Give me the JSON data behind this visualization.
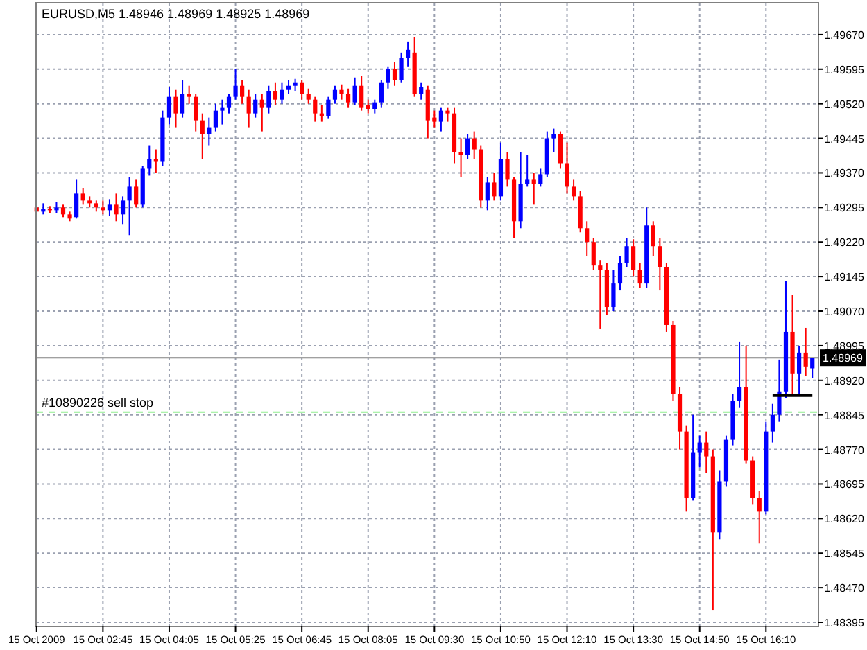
{
  "chart_data": {
    "type": "candlestick",
    "title": "EURUSD,M5  1.48946 1.48969 1.48925 1.48969",
    "categories": [
      "15 Oct 2009",
      null,
      null,
      null,
      null,
      null,
      null,
      null,
      null,
      null,
      "15 Oct 02:45",
      null,
      null,
      null,
      null,
      null,
      null,
      null,
      null,
      null,
      "15 Oct 04:05",
      null,
      null,
      null,
      null,
      null,
      null,
      null,
      null,
      null,
      "15 Oct 05:25",
      null,
      null,
      null,
      null,
      null,
      null,
      null,
      null,
      null,
      "15 Oct 06:45",
      null,
      null,
      null,
      null,
      null,
      null,
      null,
      null,
      null,
      "15 Oct 08:05",
      null,
      null,
      null,
      null,
      null,
      null,
      null,
      null,
      null,
      "15 Oct 09:30",
      null,
      null,
      null,
      null,
      null,
      null,
      null,
      null,
      null,
      "15 Oct 10:50",
      null,
      null,
      null,
      null,
      null,
      null,
      null,
      null,
      null,
      "15 Oct 12:10",
      null,
      null,
      null,
      null,
      null,
      null,
      null,
      null,
      null,
      "15 Oct 13:30",
      null,
      null,
      null,
      null,
      null,
      null,
      null,
      null,
      null,
      "15 Oct 14:50",
      null,
      null,
      null,
      null,
      null,
      null,
      null,
      null,
      null,
      "15 Oct 16:10",
      null,
      null,
      null,
      null,
      null,
      null,
      null
    ],
    "ohlc": [
      [
        1.49295,
        1.49301,
        1.49277,
        1.49286
      ],
      [
        1.49286,
        1.49304,
        1.4928,
        1.49292
      ],
      [
        1.49292,
        1.49298,
        1.49283,
        1.49289
      ],
      [
        1.49289,
        1.49307,
        1.49283,
        1.49295
      ],
      [
        1.49295,
        1.49301,
        1.49274,
        1.4928
      ],
      [
        1.4928,
        1.49286,
        1.49265,
        1.49271
      ],
      [
        1.49274,
        1.49355,
        1.49271,
        1.49325
      ],
      [
        1.49325,
        1.49337,
        1.49301,
        1.4931
      ],
      [
        1.4931,
        1.49319,
        1.49295,
        1.49304
      ],
      [
        1.49304,
        1.4931,
        1.49286,
        1.49295
      ],
      [
        1.49295,
        1.4931,
        1.4928,
        1.49289
      ],
      [
        1.49289,
        1.49313,
        1.49277,
        1.49301
      ],
      [
        1.49301,
        1.49325,
        1.49265,
        1.4928
      ],
      [
        1.4928,
        1.49319,
        1.49259,
        1.4931
      ],
      [
        1.4931,
        1.49361,
        1.49235,
        1.4934
      ],
      [
        1.4934,
        1.49355,
        1.49295,
        1.49301
      ],
      [
        1.49301,
        1.49385,
        1.49295,
        1.49379
      ],
      [
        1.49379,
        1.4943,
        1.49364,
        1.494
      ],
      [
        1.494,
        1.49421,
        1.4937,
        1.49394
      ],
      [
        1.49394,
        1.49505,
        1.49385,
        1.4949
      ],
      [
        1.4949,
        1.49556,
        1.49475,
        1.49535
      ],
      [
        1.49535,
        1.4955,
        1.49469,
        1.49499
      ],
      [
        1.49499,
        1.49571,
        1.4949,
        1.49541
      ],
      [
        1.49541,
        1.49559,
        1.4952,
        1.49535
      ],
      [
        1.49535,
        1.49541,
        1.4946,
        1.49484
      ],
      [
        1.49484,
        1.49499,
        1.494,
        1.49454
      ],
      [
        1.49454,
        1.4949,
        1.4943,
        1.49469
      ],
      [
        1.49469,
        1.4952,
        1.4946,
        1.49505
      ],
      [
        1.49505,
        1.49529,
        1.49475,
        1.49511
      ],
      [
        1.49511,
        1.49541,
        1.49499,
        1.49535
      ],
      [
        1.49535,
        1.49595,
        1.49529,
        1.49559
      ],
      [
        1.49559,
        1.49571,
        1.4952,
        1.49535
      ],
      [
        1.49535,
        1.4955,
        1.49469,
        1.49499
      ],
      [
        1.49499,
        1.49541,
        1.4949,
        1.49529
      ],
      [
        1.49529,
        1.49541,
        1.4946,
        1.49511
      ],
      [
        1.49511,
        1.49559,
        1.49499,
        1.49547
      ],
      [
        1.49547,
        1.49565,
        1.49517,
        1.49529
      ],
      [
        1.49529,
        1.49565,
        1.4952,
        1.4955
      ],
      [
        1.4955,
        1.49571,
        1.49541,
        1.49559
      ],
      [
        1.49559,
        1.49574,
        1.49547,
        1.49565
      ],
      [
        1.49565,
        1.49571,
        1.49529,
        1.49541
      ],
      [
        1.49541,
        1.49553,
        1.4952,
        1.49529
      ],
      [
        1.49529,
        1.49535,
        1.49481,
        1.49499
      ],
      [
        1.49499,
        1.49517,
        1.49481,
        1.49493
      ],
      [
        1.49493,
        1.49535,
        1.49487,
        1.49529
      ],
      [
        1.49529,
        1.49559,
        1.4952,
        1.4955
      ],
      [
        1.4955,
        1.49562,
        1.49529,
        1.49541
      ],
      [
        1.49541,
        1.49553,
        1.49511,
        1.49523
      ],
      [
        1.49523,
        1.49577,
        1.49517,
        1.49559
      ],
      [
        1.49559,
        1.4958,
        1.49505,
        1.49511
      ],
      [
        1.49517,
        1.49529,
        1.49499,
        1.49508
      ],
      [
        1.49508,
        1.49529,
        1.49499,
        1.49523
      ],
      [
        1.49523,
        1.49571,
        1.49511,
        1.49565
      ],
      [
        1.49565,
        1.49601,
        1.49553,
        1.49595
      ],
      [
        1.49595,
        1.4961,
        1.49559,
        1.49571
      ],
      [
        1.49571,
        1.49631,
        1.49565,
        1.49619
      ],
      [
        1.49619,
        1.49655,
        1.49601,
        1.49637
      ],
      [
        1.49631,
        1.49664,
        1.49535,
        1.49541
      ],
      [
        1.49541,
        1.49565,
        1.49529,
        1.49556
      ],
      [
        1.4955,
        1.49559,
        1.49445,
        1.49484
      ],
      [
        1.4949,
        1.49505,
        1.49469,
        1.49481
      ],
      [
        1.49481,
        1.49511,
        1.4946,
        1.49505
      ],
      [
        1.49505,
        1.49511,
        1.49481,
        1.49499
      ],
      [
        1.49499,
        1.49511,
        1.49391,
        1.49415
      ],
      [
        1.49415,
        1.49445,
        1.49361,
        1.49409
      ],
      [
        1.49409,
        1.49454,
        1.494,
        1.49445
      ],
      [
        1.49445,
        1.4946,
        1.494,
        1.49421
      ],
      [
        1.49421,
        1.4943,
        1.49295,
        1.4931
      ],
      [
        1.4931,
        1.49361,
        1.49289,
        1.49349
      ],
      [
        1.49349,
        1.4937,
        1.4931,
        1.49319
      ],
      [
        1.49319,
        1.49436,
        1.4931,
        1.494
      ],
      [
        1.494,
        1.49415,
        1.4934,
        1.49355
      ],
      [
        1.49355,
        1.49361,
        1.49229,
        1.49265
      ],
      [
        1.49265,
        1.49415,
        1.4925,
        1.49346
      ],
      [
        1.49346,
        1.49409,
        1.4934,
        1.49355
      ],
      [
        1.49355,
        1.4937,
        1.49301,
        1.49346
      ],
      [
        1.49346,
        1.49379,
        1.4934,
        1.49367
      ],
      [
        1.49367,
        1.4946,
        1.49361,
        1.49445
      ],
      [
        1.49445,
        1.49466,
        1.49415,
        1.49454
      ],
      [
        1.49454,
        1.4946,
        1.49379,
        1.49391
      ],
      [
        1.49391,
        1.49436,
        1.49325,
        1.4934
      ],
      [
        1.4934,
        1.49355,
        1.4931,
        1.49319
      ],
      [
        1.49319,
        1.49331,
        1.49241,
        1.4925
      ],
      [
        1.4925,
        1.49265,
        1.4919,
        1.4922
      ],
      [
        1.4922,
        1.49229,
        1.4916,
        1.49169
      ],
      [
        1.49169,
        1.49181,
        1.49031,
        1.4916
      ],
      [
        1.4916,
        1.49175,
        1.49061,
        1.49079
      ],
      [
        1.49079,
        1.4916,
        1.4907,
        1.4913
      ],
      [
        1.4913,
        1.4919,
        1.49115,
        1.49175
      ],
      [
        1.49175,
        1.49229,
        1.49166,
        1.49211
      ],
      [
        1.49211,
        1.49226,
        1.49145,
        1.4916
      ],
      [
        1.4916,
        1.49175,
        1.49121,
        1.4913
      ],
      [
        1.4913,
        1.49295,
        1.49121,
        1.49256
      ],
      [
        1.49256,
        1.49265,
        1.4919,
        1.49211
      ],
      [
        1.49211,
        1.49229,
        1.49115,
        1.49166
      ],
      [
        1.49166,
        1.49175,
        1.49025,
        1.4904
      ],
      [
        1.4904,
        1.49049,
        1.48875,
        1.4889
      ],
      [
        1.4889,
        1.48905,
        1.4877,
        1.48809
      ],
      [
        1.48809,
        1.48821,
        1.48635,
        1.48665
      ],
      [
        1.48665,
        1.48845,
        1.48659,
        1.48764
      ],
      [
        1.48764,
        1.488,
        1.48731,
        1.48785
      ],
      [
        1.48785,
        1.48809,
        1.48719,
        1.48755
      ],
      [
        1.48755,
        1.4877,
        1.48422,
        1.4859
      ],
      [
        1.4859,
        1.48725,
        1.48575,
        1.48701
      ],
      [
        1.48701,
        1.488,
        1.48689,
        1.48791
      ],
      [
        1.48791,
        1.4889,
        1.48779,
        1.48875
      ],
      [
        1.48875,
        1.49004,
        1.4886,
        1.48905
      ],
      [
        1.48905,
        1.48995,
        1.4874,
        1.48746
      ],
      [
        1.48746,
        1.48755,
        1.4865,
        1.48665
      ],
      [
        1.48665,
        1.4868,
        1.48566,
        1.48635
      ],
      [
        1.48635,
        1.4883,
        1.48629,
        1.48809
      ],
      [
        1.48809,
        1.48869,
        1.48785,
        1.48845
      ],
      [
        1.48845,
        1.48965,
        1.4883,
        1.48896
      ],
      [
        1.48896,
        1.49136,
        1.48881,
        1.49025
      ],
      [
        1.49025,
        1.49106,
        1.4889,
        1.48935
      ],
      [
        1.48935,
        1.48995,
        1.48887,
        1.4898
      ],
      [
        1.4898,
        1.49034,
        1.48929,
        1.4895
      ],
      [
        1.48946,
        1.48969,
        1.48925,
        1.48969
      ]
    ],
    "colors": [
      "#ff0000",
      "#0000ff",
      "#ff0000",
      "#0000ff",
      "#ff0000",
      "#ff0000",
      "#0000ff",
      "#ff0000",
      "#ff0000",
      "#ff0000",
      "#ff0000",
      "#0000ff",
      "#ff0000",
      "#0000ff",
      "#0000ff",
      "#ff0000",
      "#0000ff",
      "#0000ff",
      "#ff0000",
      "#0000ff",
      "#0000ff",
      "#ff0000",
      "#0000ff",
      "#ff0000",
      "#ff0000",
      "#ff0000",
      "#0000ff",
      "#0000ff",
      "#0000ff",
      "#0000ff",
      "#0000ff",
      "#ff0000",
      "#ff0000",
      "#0000ff",
      "#ff0000",
      "#0000ff",
      "#ff0000",
      "#0000ff",
      "#0000ff",
      "#0000ff",
      "#ff0000",
      "#ff0000",
      "#ff0000",
      "#ff0000",
      "#0000ff",
      "#0000ff",
      "#ff0000",
      "#ff0000",
      "#0000ff",
      "#ff0000",
      "#ff0000",
      "#0000ff",
      "#0000ff",
      "#0000ff",
      "#ff0000",
      "#0000ff",
      "#0000ff",
      "#ff0000",
      "#0000ff",
      "#ff0000",
      "#ff0000",
      "#0000ff",
      "#ff0000",
      "#ff0000",
      "#ff0000",
      "#0000ff",
      "#ff0000",
      "#ff0000",
      "#0000ff",
      "#ff0000",
      "#0000ff",
      "#ff0000",
      "#ff0000",
      "#0000ff",
      "#0000ff",
      "#ff0000",
      "#0000ff",
      "#0000ff",
      "#0000ff",
      "#ff0000",
      "#ff0000",
      "#ff0000",
      "#ff0000",
      "#ff0000",
      "#ff0000",
      "#ff0000",
      "#ff0000",
      "#0000ff",
      "#0000ff",
      "#0000ff",
      "#ff0000",
      "#ff0000",
      "#0000ff",
      "#ff0000",
      "#ff0000",
      "#ff0000",
      "#ff0000",
      "#ff0000",
      "#ff0000",
      "#0000ff",
      "#0000ff",
      "#ff0000",
      "#ff0000",
      "#0000ff",
      "#0000ff",
      "#0000ff",
      "#0000ff",
      "#ff0000",
      "#ff0000",
      "#ff0000",
      "#0000ff",
      "#0000ff",
      "#0000ff",
      "#0000ff",
      "#ff0000",
      "#0000ff",
      "#ff0000",
      "#0000ff"
    ],
    "series": [
      {
        "type": "line",
        "color": "#000000",
        "values": [
          null,
          null,
          null,
          null,
          null,
          null,
          null,
          null,
          null,
          null,
          null,
          null,
          null,
          null,
          null,
          null,
          null,
          null,
          null,
          null,
          null,
          null,
          null,
          null,
          null,
          null,
          null,
          null,
          null,
          null,
          null,
          null,
          null,
          null,
          null,
          null,
          null,
          null,
          null,
          null,
          null,
          null,
          null,
          null,
          null,
          null,
          null,
          null,
          null,
          null,
          null,
          null,
          null,
          null,
          null,
          null,
          null,
          null,
          null,
          null,
          null,
          null,
          null,
          null,
          null,
          null,
          null,
          null,
          null,
          null,
          null,
          null,
          null,
          null,
          null,
          null,
          null,
          null,
          null,
          null,
          null,
          null,
          null,
          null,
          null,
          null,
          null,
          null,
          null,
          null,
          null,
          null,
          null,
          null,
          null,
          null,
          null,
          null,
          null,
          null,
          null,
          null,
          null,
          null,
          null,
          null,
          null,
          null,
          null,
          null,
          null,
          1.48887,
          1.48887,
          1.48887,
          1.48887,
          1.48887,
          1.48887,
          1.48887
        ]
      }
    ],
    "ylim": [
      1.48386,
      1.49739
    ],
    "yticks": [
      {
        "value": 1.4967,
        "label": "1.49670"
      },
      {
        "value": 1.49595,
        "label": "1.49595"
      },
      {
        "value": 1.4952,
        "label": "1.49520"
      },
      {
        "value": 1.49445,
        "label": "1.49445"
      },
      {
        "value": 1.4937,
        "label": "1.49370"
      },
      {
        "value": 1.49295,
        "label": "1.49295"
      },
      {
        "value": 1.4922,
        "label": "1.49220"
      },
      {
        "value": 1.49145,
        "label": "1.49145"
      },
      {
        "value": 1.4907,
        "label": "1.49070"
      },
      {
        "value": 1.48995,
        "label": "1.48995"
      },
      {
        "value": 1.4892,
        "label": "1.48920"
      },
      {
        "value": 1.48845,
        "label": "1.48845"
      },
      {
        "value": 1.4877,
        "label": "1.48770"
      },
      {
        "value": 1.48695,
        "label": "1.48695"
      },
      {
        "value": 1.4862,
        "label": "1.48620"
      },
      {
        "value": 1.48545,
        "label": "1.48545"
      },
      {
        "value": 1.4847,
        "label": "1.48470"
      },
      {
        "value": 1.48395,
        "label": "1.48395"
      }
    ],
    "ref_lines": [
      {
        "axis": "y",
        "value": 1.48969,
        "label": "1.48969",
        "color": "#808080",
        "line_style": "solid"
      },
      {
        "axis": "y",
        "value": 1.48851,
        "label": "#10890226 sell stop",
        "color": "#90ee90",
        "line_style": "dashed"
      }
    ],
    "grid": true
  }
}
